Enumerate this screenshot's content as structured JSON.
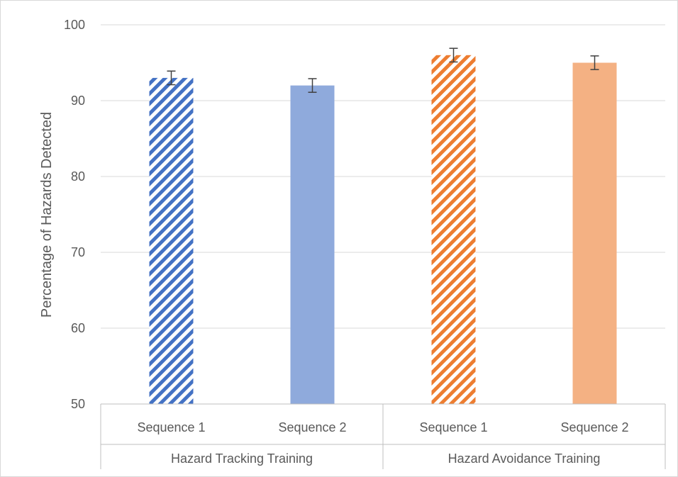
{
  "chart_data": {
    "type": "bar",
    "ylabel": "Percentage of Hazards Detected",
    "ylim": [
      50,
      100
    ],
    "yticks": [
      50,
      60,
      70,
      80,
      90,
      100
    ],
    "grid": true,
    "groups": [
      {
        "label": "Hazard Tracking Training",
        "categories": [
          "Sequence 1",
          "Sequence 2"
        ]
      },
      {
        "label": "Hazard Avoidance Training",
        "categories": [
          "Sequence 1",
          "Sequence 2"
        ]
      }
    ],
    "bars": [
      {
        "group": "Hazard Tracking Training",
        "category": "Sequence 1",
        "value": 93,
        "error": 0.9,
        "color": "#4472c4",
        "fill_style": "striped"
      },
      {
        "group": "Hazard Tracking Training",
        "category": "Sequence 2",
        "value": 92,
        "error": 0.9,
        "color": "#8faadc",
        "fill_style": "solid"
      },
      {
        "group": "Hazard Avoidance Training",
        "category": "Sequence 1",
        "value": 96,
        "error": 0.9,
        "color": "#ed7d31",
        "fill_style": "striped"
      },
      {
        "group": "Hazard Avoidance Training",
        "category": "Sequence 2",
        "value": 95,
        "error": 0.9,
        "color": "#f4b183",
        "fill_style": "solid"
      }
    ]
  }
}
